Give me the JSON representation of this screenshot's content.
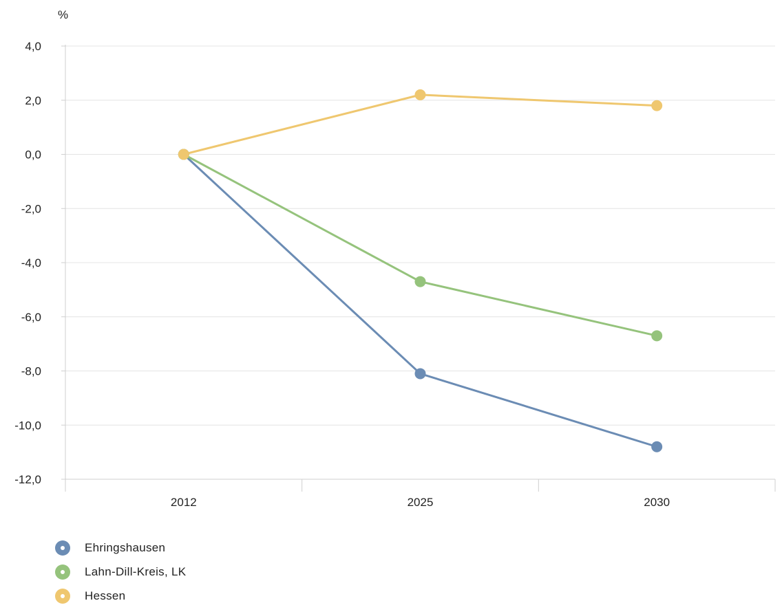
{
  "chart_data": {
    "type": "line",
    "unit": "%",
    "categories": [
      "2012",
      "2025",
      "2030"
    ],
    "ylim": [
      -12,
      4
    ],
    "yticks": [
      4,
      2,
      0,
      -2,
      -4,
      -6,
      -8,
      -10,
      -12
    ],
    "ytick_labels": [
      "4,0",
      "2,0",
      "0,0",
      "-2,0",
      "-4,0",
      "-6,0",
      "-8,0",
      "-10,0",
      "-12,0"
    ],
    "grid": true,
    "legend_placement": "bottom-left",
    "series": [
      {
        "name": "Ehringshausen",
        "color": "#6b8cb4",
        "values": [
          0.0,
          -8.1,
          -10.8
        ]
      },
      {
        "name": "Lahn-Dill-Kreis, LK",
        "color": "#95c37c",
        "values": [
          0.0,
          -4.7,
          -6.7
        ]
      },
      {
        "name": "Hessen",
        "color": "#efc76f",
        "values": [
          0.0,
          2.2,
          1.8
        ]
      }
    ]
  }
}
